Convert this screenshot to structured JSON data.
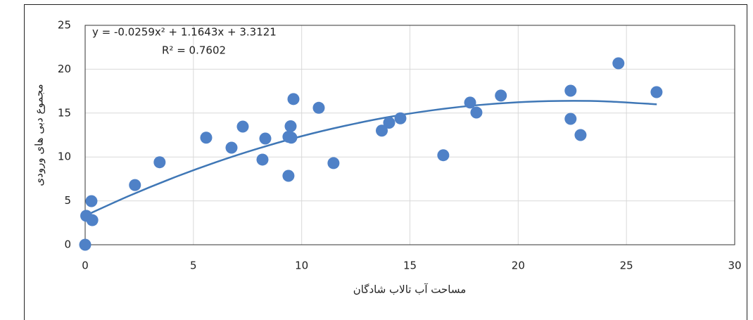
{
  "chart_data": {
    "type": "scatter",
    "x_label": "مساحت آب تالاب شادگان",
    "y_label": "مجموع دبی های ورودی",
    "x": [
      0,
      0.05,
      0.29,
      0.33,
      2.3,
      3.44,
      5.59,
      6.76,
      7.28,
      8.19,
      8.32,
      9.39,
      9.39,
      9.52,
      9.49,
      9.62,
      10.79,
      11.47,
      13.7,
      14.04,
      14.56,
      16.54,
      17.78,
      18.07,
      19.2,
      22.42,
      22.42,
      22.88,
      24.63,
      26.39
    ],
    "values": [
      0,
      3.3,
      4.97,
      2.8,
      6.8,
      9.4,
      12.2,
      11.06,
      13.46,
      9.7,
      12.1,
      7.85,
      12.3,
      12.2,
      13.5,
      16.6,
      15.6,
      9.3,
      13.0,
      13.9,
      14.4,
      10.2,
      16.2,
      15.06,
      17.0,
      17.55,
      14.34,
      12.5,
      20.67,
      17.39
    ],
    "color": "#4f81c7",
    "trendline": {
      "x": [
        0,
        2,
        4,
        6,
        8,
        10,
        12,
        14,
        16,
        18,
        20,
        22,
        24,
        26.4
      ],
      "values": [
        3.31,
        5.54,
        7.56,
        9.37,
        10.97,
        12.37,
        13.55,
        14.54,
        15.31,
        15.88,
        16.24,
        16.39,
        16.34,
        16.0
      ],
      "color": "#3f77b6",
      "equation": "y = -0.0259x² + 1.1643x + 3.3121",
      "r_squared": "R² = 0.7602"
    },
    "xlim": [
      0,
      30
    ],
    "xticks": [
      0,
      5,
      10,
      15,
      20,
      25,
      30
    ],
    "ylim": [
      0,
      25
    ],
    "yticks": [
      0,
      5,
      10,
      15,
      20,
      25
    ],
    "grid": true
  }
}
